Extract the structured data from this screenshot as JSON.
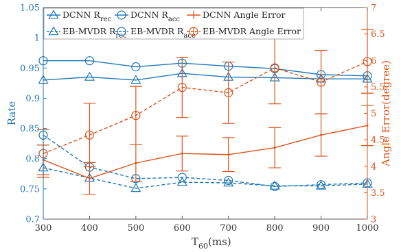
{
  "chart_data": {
    "type": "line",
    "x": [
      300,
      400,
      500,
      600,
      700,
      800,
      900,
      1000
    ],
    "xlim": [
      300,
      1000
    ],
    "xticks": [
      "300",
      "400",
      "500",
      "600",
      "700",
      "800",
      "900",
      "1000"
    ],
    "xlabel_main": "T",
    "xlabel_sub": "60",
    "xlabel_unit": "(ms)",
    "ylabel_left": "Rate",
    "ylim_left": [
      0.7,
      1.05
    ],
    "yticks_left": [
      "0.7",
      "0.75",
      "0.8",
      "0.85",
      "0.9",
      "0.95",
      "1",
      "1.05"
    ],
    "ylabel_right": "Angle Error(degree)",
    "ylim_right": [
      3,
      7
    ],
    "yticks_right": [
      "3",
      "3.5",
      "4",
      "4.5",
      "5",
      "5.5",
      "6",
      "6.5",
      "7"
    ],
    "grid": false,
    "legend_placement": "top-left",
    "colors": {
      "blue": "#1f77b4",
      "orange": "#d95319",
      "axis": "#555555"
    },
    "series": [
      {
        "name": "DCNN R",
        "sub": "rec",
        "axis": "left",
        "marker": "triangle",
        "dash": "solid",
        "color": "blue",
        "values": [
          0.93,
          0.935,
          0.93,
          0.941,
          0.935,
          0.934,
          0.932,
          0.932
        ]
      },
      {
        "name": "EB-MVDR R",
        "sub": "rec",
        "axis": "left",
        "marker": "triangle",
        "dash": "dashed",
        "color": "blue",
        "values": [
          0.785,
          0.768,
          0.751,
          0.761,
          0.76,
          0.755,
          0.755,
          0.758
        ]
      },
      {
        "name": "DCNN R",
        "sub": "acc",
        "axis": "left",
        "marker": "circle",
        "dash": "solid",
        "color": "blue",
        "values": [
          0.962,
          0.962,
          0.952,
          0.958,
          0.953,
          0.949,
          0.939,
          0.937
        ]
      },
      {
        "name": "EB-MVDR R",
        "sub": "acc",
        "axis": "left",
        "marker": "circle",
        "dash": "dashed",
        "color": "blue",
        "values": [
          0.839,
          0.786,
          0.767,
          0.769,
          0.764,
          0.754,
          0.757,
          0.76
        ]
      },
      {
        "name": "DCNN Angle Error",
        "sub": "",
        "axis": "right",
        "marker": "none",
        "dash": "solid",
        "color": "orange",
        "values": [
          4.12,
          3.77,
          4.06,
          4.24,
          4.22,
          4.35,
          4.59,
          4.77
        ],
        "error": [
          0.28,
          0.3,
          0.35,
          0.33,
          0.32,
          0.38,
          0.4,
          0.38
        ]
      },
      {
        "name": "EB-MVDR Angle Error",
        "sub": "",
        "axis": "right",
        "marker": "circle",
        "dash": "dashed",
        "color": "orange",
        "values": [
          4.24,
          4.59,
          4.96,
          5.49,
          5.39,
          5.86,
          5.59,
          5.98
        ],
        "error": [
          0.45,
          0.6,
          0.55,
          0.57,
          0.58,
          0.68,
          0.6,
          0.6
        ]
      }
    ]
  }
}
